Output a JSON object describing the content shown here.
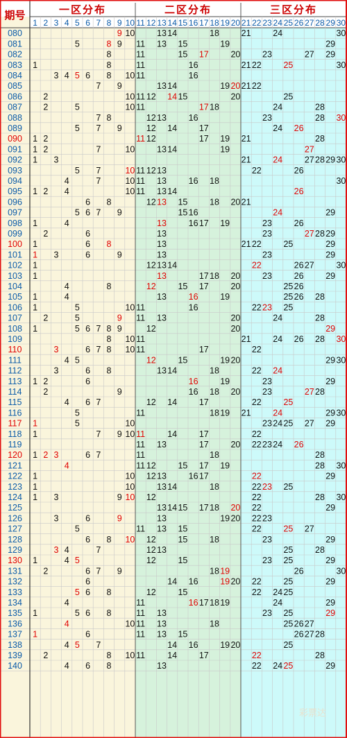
{
  "header": {
    "period_label": "期号",
    "zones": [
      "一区分布",
      "二区分布",
      "三区分布"
    ],
    "numbers": [
      "1",
      "2",
      "3",
      "4",
      "5",
      "6",
      "7",
      "8",
      "9",
      "10",
      "11",
      "12",
      "13",
      "14",
      "15",
      "16",
      "17",
      "18",
      "19",
      "20",
      "21",
      "22",
      "23",
      "24",
      "25",
      "26",
      "27",
      "28",
      "29",
      "30"
    ]
  },
  "colors": {
    "zone1_bg": "#faf5dc",
    "zone2_bg": "#d6f2dc",
    "zone3_bg": "#cdfafa",
    "header_red": "#cc0000",
    "number_blue": "#0a5aa8",
    "grid": "#c8c8c8",
    "red_period": "#e00000",
    "border_red": "#e01010"
  },
  "watermark": "彩票达",
  "chart_data": {
    "type": "table",
    "title": "",
    "red_periods": [
      "090",
      "100",
      "110",
      "117",
      "120",
      "130"
    ],
    "rows": [
      {
        "period": "080",
        "numbers": [
          9,
          10,
          13,
          14,
          18,
          21,
          24,
          30
        ],
        "red": [
          9
        ]
      },
      {
        "period": "081",
        "numbers": [
          5,
          8,
          9,
          11,
          13,
          15,
          19,
          29
        ],
        "red": [
          8
        ]
      },
      {
        "period": "082",
        "numbers": [
          8,
          11,
          15,
          17,
          20,
          23,
          27,
          29
        ],
        "red": [
          17
        ]
      },
      {
        "period": "083",
        "numbers": [
          1,
          8,
          11,
          16,
          21,
          22,
          25,
          30
        ],
        "red": [
          25
        ]
      },
      {
        "period": "084",
        "numbers": [
          3,
          4,
          5,
          6,
          8,
          10,
          11,
          16
        ],
        "red": [
          5
        ]
      },
      {
        "period": "085",
        "numbers": [
          7,
          9,
          13,
          14,
          19,
          20,
          21,
          22
        ],
        "red": [
          20
        ]
      },
      {
        "period": "086",
        "numbers": [
          2,
          10,
          11,
          12,
          14,
          15,
          20,
          25
        ],
        "red": [
          14
        ]
      },
      {
        "period": "087",
        "numbers": [
          2,
          5,
          10,
          11,
          17,
          18,
          24,
          28
        ],
        "red": [
          17
        ]
      },
      {
        "period": "088",
        "numbers": [
          7,
          8,
          12,
          13,
          16,
          23,
          28,
          30
        ],
        "red": [
          30
        ]
      },
      {
        "period": "089",
        "numbers": [
          5,
          7,
          9,
          12,
          14,
          17,
          24,
          26
        ],
        "red": [
          26
        ]
      },
      {
        "period": "090",
        "numbers": [
          1,
          2,
          11,
          12,
          17,
          19,
          21,
          28
        ],
        "red": [
          11
        ]
      },
      {
        "period": "091",
        "numbers": [
          1,
          2,
          7,
          10,
          13,
          14,
          19,
          27
        ],
        "red": [
          27
        ]
      },
      {
        "period": "092",
        "numbers": [
          1,
          3,
          21,
          24,
          27,
          28,
          29,
          30
        ],
        "red": [
          24
        ]
      },
      {
        "period": "093",
        "numbers": [
          5,
          7,
          10,
          11,
          12,
          13,
          22,
          26
        ],
        "red": [
          10
        ]
      },
      {
        "period": "094",
        "numbers": [
          4,
          7,
          10,
          11,
          13,
          16,
          18,
          30
        ],
        "red": []
      },
      {
        "period": "095",
        "numbers": [
          1,
          2,
          4,
          10,
          11,
          13,
          14,
          26
        ],
        "red": [
          26
        ]
      },
      {
        "period": "096",
        "numbers": [
          6,
          8,
          12,
          13,
          15,
          18,
          20,
          21
        ],
        "red": [
          13
        ]
      },
      {
        "period": "097",
        "numbers": [
          5,
          6,
          7,
          9,
          15,
          16,
          24,
          29
        ],
        "red": [
          24
        ]
      },
      {
        "period": "098",
        "numbers": [
          1,
          4,
          13,
          16,
          17,
          19,
          23,
          26
        ],
        "red": [
          13
        ]
      },
      {
        "period": "099",
        "numbers": [
          2,
          6,
          13,
          23,
          27,
          28,
          29
        ],
        "red": [
          27
        ]
      },
      {
        "period": "100",
        "numbers": [
          1,
          6,
          8,
          13,
          21,
          22,
          25,
          29
        ],
        "red": [
          8
        ]
      },
      {
        "period": "101",
        "numbers": [
          1,
          3,
          6,
          9,
          13,
          23,
          29
        ],
        "red": [
          1
        ]
      },
      {
        "period": "102",
        "numbers": [
          1,
          12,
          13,
          14,
          22,
          26,
          27,
          30
        ],
        "red": [
          22
        ]
      },
      {
        "period": "103",
        "numbers": [
          1,
          13,
          17,
          18,
          20,
          23,
          26,
          29
        ],
        "red": [
          13
        ]
      },
      {
        "period": "104",
        "numbers": [
          4,
          8,
          12,
          15,
          17,
          20,
          25,
          26
        ],
        "red": [
          12
        ]
      },
      {
        "period": "105",
        "numbers": [
          1,
          4,
          13,
          16,
          19,
          25,
          26,
          28
        ],
        "red": [
          16
        ]
      },
      {
        "period": "106",
        "numbers": [
          1,
          5,
          10,
          11,
          16,
          22,
          23,
          25
        ],
        "red": [
          23
        ]
      },
      {
        "period": "107",
        "numbers": [
          2,
          5,
          9,
          11,
          13,
          20,
          24,
          28
        ],
        "red": [
          9
        ]
      },
      {
        "period": "108",
        "numbers": [
          1,
          5,
          6,
          7,
          8,
          9,
          12,
          20,
          29
        ],
        "red": [
          29
        ]
      },
      {
        "period": "109",
        "numbers": [
          8,
          10,
          11,
          21,
          24,
          26,
          28,
          30
        ],
        "red": [
          30
        ]
      },
      {
        "period": "110",
        "numbers": [
          3,
          6,
          7,
          8,
          10,
          11,
          17,
          22
        ],
        "red": [
          3
        ]
      },
      {
        "period": "111",
        "numbers": [
          4,
          5,
          12,
          15,
          19,
          20,
          29,
          30
        ],
        "red": [
          12
        ]
      },
      {
        "period": "112",
        "numbers": [
          3,
          6,
          8,
          13,
          14,
          18,
          22,
          24
        ],
        "red": [
          24
        ]
      },
      {
        "period": "113",
        "numbers": [
          1,
          2,
          6,
          16,
          19,
          23,
          29
        ],
        "red": [
          16
        ]
      },
      {
        "period": "114",
        "numbers": [
          2,
          9,
          16,
          18,
          20,
          23,
          27,
          28
        ],
        "red": [
          27
        ]
      },
      {
        "period": "115",
        "numbers": [
          4,
          6,
          7,
          12,
          14,
          17,
          22,
          25
        ],
        "red": [
          25
        ]
      },
      {
        "period": "116",
        "numbers": [
          5,
          11,
          18,
          19,
          21,
          24,
          29,
          30
        ],
        "red": [
          24
        ]
      },
      {
        "period": "117",
        "numbers": [
          1,
          5,
          10,
          23,
          24,
          25,
          27,
          29
        ],
        "red": [
          1
        ]
      },
      {
        "period": "118",
        "numbers": [
          1,
          7,
          9,
          10,
          11,
          14,
          17,
          22
        ],
        "red": [
          11
        ]
      },
      {
        "period": "119",
        "numbers": [
          11,
          13,
          17,
          20,
          22,
          23,
          24,
          26
        ],
        "red": [
          26
        ]
      },
      {
        "period": "120",
        "numbers": [
          1,
          2,
          3,
          6,
          7,
          11,
          18,
          28
        ],
        "red": [
          2,
          3
        ]
      },
      {
        "period": "121",
        "numbers": [
          4,
          11,
          12,
          15,
          17,
          19,
          28,
          30
        ],
        "red": [
          4
        ]
      },
      {
        "period": "122",
        "numbers": [
          1,
          10,
          12,
          13,
          16,
          17,
          22,
          29
        ],
        "red": [
          22
        ]
      },
      {
        "period": "123",
        "numbers": [
          1,
          10,
          13,
          14,
          18,
          22,
          23,
          25
        ],
        "red": [
          23
        ]
      },
      {
        "period": "124",
        "numbers": [
          1,
          3,
          9,
          10,
          12,
          22,
          28,
          30
        ],
        "red": [
          10
        ]
      },
      {
        "period": "125",
        "numbers": [
          13,
          14,
          15,
          17,
          18,
          20,
          22,
          29
        ],
        "red": [
          20
        ]
      },
      {
        "period": "126",
        "numbers": [
          3,
          6,
          9,
          13,
          19,
          20,
          22,
          23
        ],
        "red": [
          9
        ]
      },
      {
        "period": "127",
        "numbers": [
          5,
          11,
          13,
          15,
          22,
          25,
          27
        ],
        "red": [
          25
        ]
      },
      {
        "period": "128",
        "numbers": [
          6,
          8,
          10,
          12,
          15,
          18,
          23,
          29
        ],
        "red": [
          10
        ]
      },
      {
        "period": "129",
        "numbers": [
          3,
          4,
          7,
          12,
          13,
          25,
          28
        ],
        "red": [
          3
        ]
      },
      {
        "period": "130",
        "numbers": [
          1,
          4,
          5,
          12,
          15,
          23,
          25,
          29
        ],
        "red": [
          5
        ]
      },
      {
        "period": "131",
        "numbers": [
          2,
          6,
          7,
          9,
          18,
          19,
          26,
          30
        ],
        "red": [
          19
        ]
      },
      {
        "period": "132",
        "numbers": [
          6,
          14,
          16,
          19,
          20,
          22,
          25,
          29
        ],
        "red": [
          19
        ]
      },
      {
        "period": "133",
        "numbers": [
          5,
          6,
          8,
          12,
          15,
          22,
          24,
          25
        ],
        "red": [
          5
        ]
      },
      {
        "period": "134",
        "numbers": [
          4,
          11,
          16,
          17,
          18,
          19,
          24,
          29
        ],
        "red": [
          16
        ]
      },
      {
        "period": "135",
        "numbers": [
          1,
          5,
          6,
          8,
          11,
          13,
          23,
          25,
          29
        ],
        "red": [
          29
        ]
      },
      {
        "period": "136",
        "numbers": [
          4,
          10,
          11,
          13,
          18,
          25,
          26,
          27
        ],
        "red": [
          4
        ]
      },
      {
        "period": "137",
        "numbers": [
          1,
          6,
          11,
          13,
          15,
          26,
          27,
          28
        ],
        "red": [
          1
        ]
      },
      {
        "period": "138",
        "numbers": [
          4,
          5,
          7,
          14,
          16,
          19,
          20,
          25
        ],
        "red": [
          5
        ]
      },
      {
        "period": "139",
        "numbers": [
          2,
          8,
          10,
          11,
          14,
          17,
          22,
          28
        ],
        "red": [
          22
        ]
      },
      {
        "period": "140",
        "numbers": [
          4,
          6,
          8,
          13,
          22,
          24,
          25,
          29
        ],
        "red": [
          25
        ]
      }
    ]
  }
}
